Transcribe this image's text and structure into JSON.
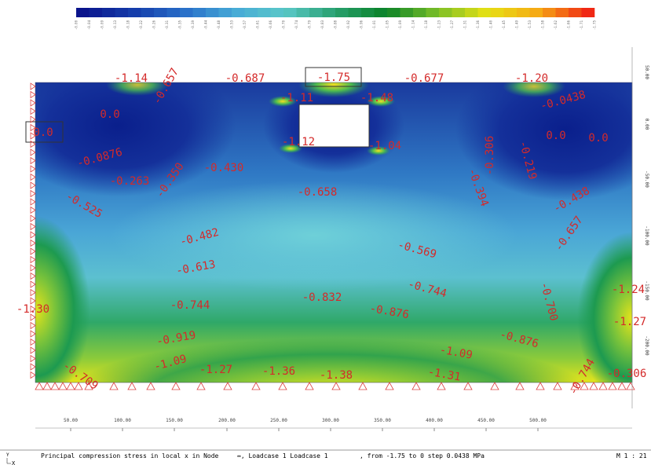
{
  "colorbar_labels": [
    "-0.00",
    "-0.04",
    "-0.09",
    "-0.13",
    "-0.18",
    "-0.22",
    "-0.26",
    "-0.31",
    "-0.35",
    "-0.39",
    "-0.44",
    "-0.48",
    "-0.53",
    "-0.57",
    "-0.61",
    "-0.66",
    "-0.70",
    "-0.74",
    "-0.79",
    "-0.83",
    "-0.88",
    "-0.92",
    "-0.96",
    "-1.01",
    "-1.05",
    "-1.09",
    "-1.14",
    "-1.18",
    "-1.23",
    "-1.27",
    "-1.31",
    "-1.36",
    "-1.40",
    "-1.45",
    "-1.49",
    "-1.53",
    "-1.58",
    "-1.62",
    "-1.66",
    "-1.71",
    "-1.75"
  ],
  "contour_labels": [
    "-1.14",
    "-0.657",
    "-0.687",
    "-1.75",
    "-0.677",
    "-1.20",
    "-0.0438",
    "-1.11",
    "-1.48",
    "0.0",
    "0.0",
    "-1.12",
    "-1.04",
    "-0.306",
    "-0.219",
    "0.0",
    "0.0",
    "-0.0876",
    "-0.263",
    "-0.350",
    "-0.430",
    "-0.658",
    "-0.394",
    "-0.438",
    "-0.525",
    "-0.482",
    "-0.657",
    "-0.569",
    "-0.613",
    "-0.744",
    "-0.700",
    "-1.24",
    "-1.30",
    "-0.744",
    "-0.832",
    "-0.876",
    "-1.27",
    "-0.919",
    "-0.876",
    "-1.09",
    "-1.09",
    "-1.27",
    "-1.36",
    "-1.38",
    "-1.31",
    "-0.709",
    "-0.744",
    "-0.306"
  ],
  "x_axis_ticks": [
    "50.00",
    "100.00",
    "150.00",
    "200.00",
    "250.00",
    "300.00",
    "350.00",
    "400.00",
    "450.00",
    "500.00"
  ],
  "y_axis_ticks": [
    "50.00",
    "0.00",
    "-50.00",
    "-100.00",
    "-150.00",
    "-200.00"
  ],
  "status_bar": {
    "result": "Principal compression stress in local x in Node",
    "loadcase": "↔, Loadcase 1  Loadcase 1",
    "range": ", from -1.75 to 0 step 0.0438 MPa",
    "scale": "M 1 : 21"
  },
  "axis_marker": {
    "y": "Y",
    "x": "X"
  }
}
